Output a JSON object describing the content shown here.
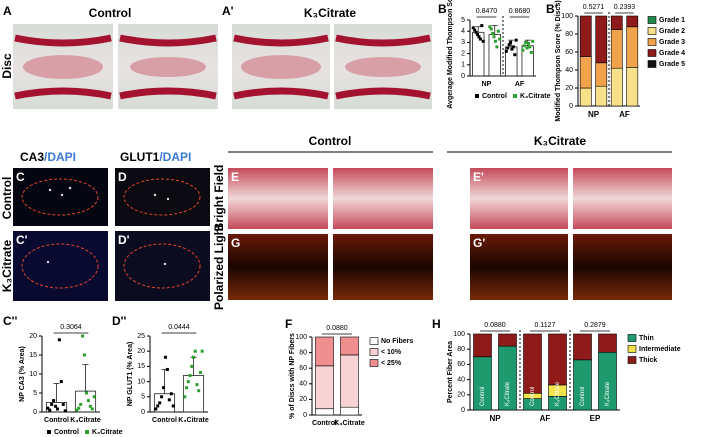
{
  "panels": {
    "A": "A",
    "A2": "A'",
    "B": "B",
    "B2": "B'",
    "C": "C",
    "D": "D",
    "C2": "C'",
    "D2": "D'",
    "E": "E",
    "E2": "E'",
    "G": "G",
    "G2": "G'",
    "C3": "C''",
    "D3": "D''",
    "F": "F",
    "H": "H"
  },
  "headings": {
    "control_a": "Control",
    "citrate_a": "K₃Citrate",
    "disc": "Disc",
    "ca3": "CA3",
    "ca3_dapi": "/DAPI",
    "glut1": "GLUT1",
    "glut1_dapi": "/DAPI",
    "control_c": "Control",
    "citrate_c": "K₃Citrate",
    "control_e": "Control",
    "citrate_e": "K₃Citrate",
    "bright": "Bright Field",
    "polarized": "Polarized Light"
  },
  "chart_data": [
    {
      "type": "dotbar",
      "ylabel": "Avgerage Modified Thompson Score",
      "categories": [
        "NP",
        "AF"
      ],
      "ylim": [
        0,
        5
      ],
      "yticks": [
        0,
        1,
        2,
        3,
        4,
        5
      ],
      "pvalues": [
        "0.8470",
        "0.8680"
      ],
      "series": [
        {
          "name": "Control",
          "color": "#000000",
          "values": [
            3.9,
            2.6
          ],
          "errors": [
            0.5,
            0.6
          ],
          "points": [
            [
              4.3,
              4.1,
              3.9,
              3.7,
              3.5,
              3.3,
              4.5,
              3.1
            ],
            [
              2.2,
              2.5,
              2.8,
              3.0,
              2.4,
              2.6,
              1.9,
              3.2
            ]
          ]
        },
        {
          "name": "K₃Citrate",
          "color": "#2ca02c",
          "values": [
            3.7,
            2.7
          ],
          "errors": [
            0.8,
            0.5
          ],
          "points": [
            [
              4.4,
              4.2,
              3.8,
              3.5,
              3.1,
              2.6,
              4.0,
              3.3
            ],
            [
              2.3,
              2.7,
              3.0,
              2.5,
              2.9,
              2.6,
              2.1,
              3.1
            ]
          ]
        }
      ]
    },
    {
      "type": "stacked",
      "ylabel": "Modified Thompson Score (% Discs)",
      "categories": [
        null,
        null,
        null,
        null
      ],
      "groups": [
        "NP",
        "AF"
      ],
      "ylim": [
        0,
        100
      ],
      "yticks": [
        0,
        20,
        40,
        60,
        80,
        100
      ],
      "pvalues": [
        "0.5271",
        "0.2393"
      ],
      "series": [
        {
          "name": "Grade 1",
          "color": "#1e8a4c",
          "values": [
            0,
            0,
            0,
            0
          ]
        },
        {
          "name": "Grade 2",
          "color": "#f7e08a",
          "values": [
            20,
            22,
            42,
            43
          ]
        },
        {
          "name": "Grade 3",
          "color": "#f0a34a",
          "values": [
            35,
            26,
            43,
            45
          ]
        },
        {
          "name": "Grade 4",
          "color": "#8e1a1a",
          "values": [
            45,
            52,
            15,
            12
          ]
        },
        {
          "name": "Grade 5",
          "color": "#111111",
          "values": [
            0,
            0,
            0,
            0
          ]
        }
      ]
    },
    {
      "type": "dotbar",
      "ylabel": "NP CA3 (% Area)",
      "categories": [
        "Control",
        "K₃Citrate"
      ],
      "ylim": [
        0,
        20
      ],
      "yticks": [
        0,
        5,
        10,
        15,
        20
      ],
      "pvalues": [
        "0.3064"
      ],
      "values": [
        2.5,
        5.5
      ],
      "errors": [
        5,
        7
      ],
      "colors": [
        "#000000",
        "#2ca02c"
      ],
      "points": [
        [
          1,
          0.5,
          2,
          3,
          1.5,
          0.8,
          19,
          8,
          2,
          0.3
        ],
        [
          0.5,
          1,
          2,
          20,
          15,
          5,
          3,
          1.5,
          0.8,
          4
        ]
      ],
      "legend": [
        {
          "name": "Control",
          "color": "#000000"
        },
        {
          "name": "K₃Citrate",
          "color": "#2ca02c"
        }
      ]
    },
    {
      "type": "dotbar",
      "ylabel": "NP GLUT1 (% Area)",
      "categories": [
        "Control",
        "K₃Citrate"
      ],
      "ylim": [
        0,
        25
      ],
      "yticks": [
        0,
        5,
        10,
        15,
        20,
        25
      ],
      "pvalues": [
        "0.0444"
      ],
      "values": [
        6,
        12
      ],
      "errors": [
        8,
        6
      ],
      "colors": [
        "#000000",
        "#2ca02c"
      ],
      "points": [
        [
          1,
          2,
          3,
          5,
          8,
          18,
          14,
          4,
          6,
          2
        ],
        [
          5,
          8,
          10,
          12,
          15,
          18,
          20,
          9,
          7,
          13,
          20
        ]
      ]
    },
    {
      "type": "stacked",
      "ylabel": "% of Discs with NP Fibers",
      "categories": [
        "Control",
        "K₃Citrate"
      ],
      "ylim": [
        0,
        100
      ],
      "yticks": [
        0,
        20,
        40,
        60,
        80,
        100
      ],
      "pvalues": [
        "0.0880"
      ],
      "series": [
        {
          "name": "No Fibers",
          "color": "#ffffff",
          "values": [
            8,
            10
          ]
        },
        {
          "name": "< 10%",
          "color": "#f8d3d3",
          "values": [
            55,
            67
          ]
        },
        {
          "name": "< 25%",
          "color": "#ef8f8f",
          "values": [
            37,
            23
          ]
        }
      ]
    },
    {
      "type": "stacked",
      "ylabel": "Percent Fiber Area",
      "categories": [
        "Control",
        "K₃Citrate",
        "Control",
        "K₃Citrate",
        "Control",
        "K₃Citrate"
      ],
      "groups": [
        "NP",
        "AF",
        "EP"
      ],
      "ylim": [
        0,
        100
      ],
      "yticks": [
        0,
        20,
        40,
        60,
        80,
        100
      ],
      "pvalues": [
        "0.0880",
        "0.1127",
        "0.2879"
      ],
      "series": [
        {
          "name": "Thin",
          "color": "#1f9a6e",
          "values": [
            70,
            84,
            15,
            18,
            66,
            76
          ]
        },
        {
          "name": "Intermediate",
          "color": "#f2e34c",
          "values": [
            0,
            0,
            7,
            15,
            0,
            0
          ]
        },
        {
          "name": "Thick",
          "color": "#8e1a1a",
          "values": [
            30,
            16,
            78,
            67,
            34,
            24
          ]
        }
      ]
    }
  ]
}
